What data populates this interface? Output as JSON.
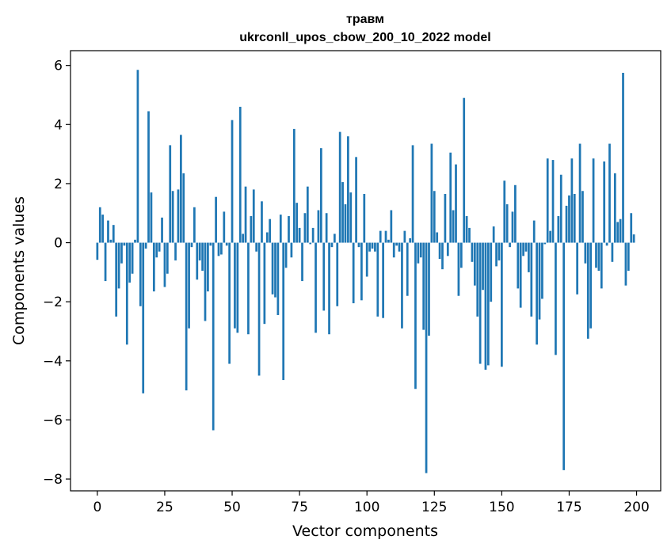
{
  "chart_data": {
    "type": "bar",
    "title": "травм",
    "subtitle": "ukrconll_upos_cbow_200_10_2022 model",
    "xlabel": "Vector components",
    "ylabel": "Components values",
    "xlim": [
      -9.95,
      208.95
    ],
    "ylim": [
      -8.4,
      6.5
    ],
    "xticks": [
      0,
      25,
      50,
      75,
      100,
      125,
      150,
      175,
      200
    ],
    "yticks": [
      -8,
      -6,
      -4,
      -2,
      0,
      2,
      4,
      6
    ],
    "grid": false,
    "legend": "none",
    "bar_color": "#1f77b4",
    "x": [
      0,
      1,
      2,
      3,
      4,
      5,
      6,
      7,
      8,
      9,
      10,
      11,
      12,
      13,
      14,
      15,
      16,
      17,
      18,
      19,
      20,
      21,
      22,
      23,
      24,
      25,
      26,
      27,
      28,
      29,
      30,
      31,
      32,
      33,
      34,
      35,
      36,
      37,
      38,
      39,
      40,
      41,
      42,
      43,
      44,
      45,
      46,
      47,
      48,
      49,
      50,
      51,
      52,
      53,
      54,
      55,
      56,
      57,
      58,
      59,
      60,
      61,
      62,
      63,
      64,
      65,
      66,
      67,
      68,
      69,
      70,
      71,
      72,
      73,
      74,
      75,
      76,
      77,
      78,
      79,
      80,
      81,
      82,
      83,
      84,
      85,
      86,
      87,
      88,
      89,
      90,
      91,
      92,
      93,
      94,
      95,
      96,
      97,
      98,
      99,
      100,
      101,
      102,
      103,
      104,
      105,
      106,
      107,
      108,
      109,
      110,
      111,
      112,
      113,
      114,
      115,
      116,
      117,
      118,
      119,
      120,
      121,
      122,
      123,
      124,
      125,
      126,
      127,
      128,
      129,
      130,
      131,
      132,
      133,
      134,
      135,
      136,
      137,
      138,
      139,
      140,
      141,
      142,
      143,
      144,
      145,
      146,
      147,
      148,
      149,
      150,
      151,
      152,
      153,
      154,
      155,
      156,
      157,
      158,
      159,
      160,
      161,
      162,
      163,
      164,
      165,
      166,
      167,
      168,
      169,
      170,
      171,
      172,
      173,
      174,
      175,
      176,
      177,
      178,
      179,
      180,
      181,
      182,
      183,
      184,
      185,
      186,
      187,
      188,
      189,
      190,
      191,
      192,
      193,
      194,
      195,
      196,
      197,
      198,
      199
    ],
    "values": [
      -0.58,
      1.2,
      0.95,
      -1.3,
      0.75,
      0.1,
      0.6,
      -2.5,
      -1.55,
      -0.7,
      -0.1,
      -3.45,
      -1.35,
      -1.05,
      0.1,
      5.85,
      -2.15,
      -5.1,
      -0.2,
      4.45,
      1.7,
      -1.65,
      -0.5,
      -0.3,
      0.85,
      -1.5,
      -1.05,
      3.3,
      1.75,
      -0.6,
      1.8,
      3.65,
      2.35,
      -5.0,
      -2.9,
      -0.15,
      1.2,
      -1.25,
      -0.6,
      -0.95,
      -2.65,
      -1.65,
      -0.1,
      -6.35,
      1.55,
      -0.45,
      -0.4,
      1.05,
      -0.1,
      -4.1,
      4.15,
      -2.9,
      -3.05,
      4.6,
      0.3,
      1.9,
      -3.1,
      0.9,
      1.8,
      -0.3,
      -4.5,
      1.4,
      -2.75,
      0.35,
      0.8,
      -1.75,
      -1.85,
      -2.45,
      0.95,
      -4.65,
      -0.85,
      0.9,
      -0.5,
      3.85,
      1.35,
      0.5,
      -1.3,
      1.0,
      1.9,
      -0.05,
      0.5,
      -3.05,
      1.1,
      3.2,
      -2.3,
      1.0,
      -3.1,
      -0.15,
      0.3,
      -2.15,
      3.75,
      2.05,
      1.3,
      3.6,
      1.7,
      -2.05,
      2.9,
      -0.15,
      -1.95,
      1.65,
      -1.15,
      -0.3,
      -0.2,
      -0.3,
      -2.5,
      0.4,
      -2.55,
      0.4,
      0.1,
      1.1,
      -0.5,
      -0.1,
      -0.3,
      -2.9,
      0.4,
      -1.8,
      0.15,
      3.3,
      -4.95,
      -0.7,
      -0.5,
      -2.95,
      -7.8,
      -3.15,
      3.35,
      1.75,
      0.35,
      -0.55,
      -0.9,
      1.65,
      -0.45,
      3.05,
      1.1,
      2.65,
      -1.8,
      -0.85,
      4.9,
      0.9,
      0.5,
      -0.65,
      -1.45,
      -2.5,
      -4.1,
      -1.6,
      -4.3,
      -4.15,
      -2.0,
      0.55,
      -0.8,
      -0.6,
      -4.2,
      2.1,
      1.3,
      -0.15,
      1.05,
      1.95,
      -1.55,
      -2.2,
      -0.45,
      -0.3,
      -1.0,
      -2.5,
      0.75,
      -3.45,
      -2.6,
      -1.9,
      -0.05,
      2.85,
      0.4,
      2.8,
      -3.8,
      0.9,
      2.3,
      -7.7,
      1.25,
      1.6,
      2.85,
      1.65,
      -1.75,
      3.35,
      1.75,
      -0.7,
      -3.25,
      -2.9,
      2.85,
      -0.85,
      -0.95,
      -1.55,
      2.75,
      -0.1,
      3.35,
      -0.65,
      2.35,
      0.7,
      0.8,
      5.75,
      -1.45,
      -0.95,
      1.0,
      0.28
    ]
  }
}
